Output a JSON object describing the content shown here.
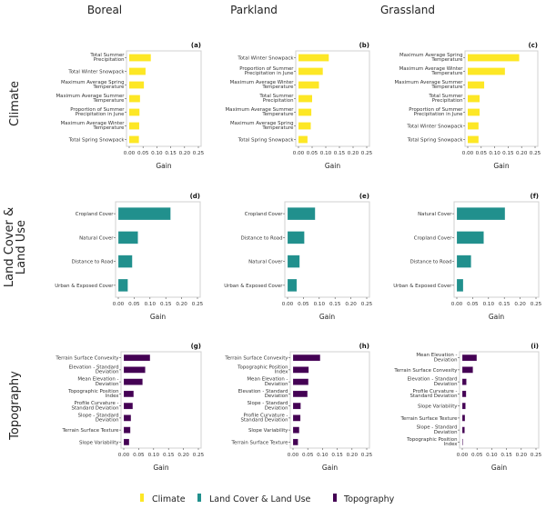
{
  "figure": {
    "column_titles": [
      "Boreal",
      "Parkland",
      "Grassland"
    ],
    "row_titles": [
      [
        "Climate"
      ],
      [
        "Land Cover &",
        "Land Use"
      ],
      [
        "Topography"
      ]
    ],
    "legend": [
      {
        "label": "Climate",
        "color": "#fde725"
      },
      {
        "label": "Land Cover & Land Use",
        "color": "#21908d"
      },
      {
        "label": "Topography",
        "color": "#440154"
      }
    ]
  },
  "chart_data": [
    {
      "type": "bar",
      "orientation": "horizontal",
      "panel": "(a)",
      "region": "Boreal",
      "group": "Climate",
      "color": "#fde725",
      "xlabel": "Gain",
      "xlim": [
        0,
        0.25
      ],
      "xticks": [
        "0.00",
        "0.05",
        "0.10",
        "0.15",
        "0.20",
        "0.25"
      ],
      "categories": [
        [
          "Total Summer",
          "Precipitation"
        ],
        [
          "Total Winter Snowpack"
        ],
        [
          "Maximum Average Spring",
          "Temperature"
        ],
        [
          "Maximum Average Summer",
          "Temperature"
        ],
        [
          "Proportion of Summer",
          "Precipitation in June"
        ],
        [
          "Maximum Average Winter",
          "Temperature"
        ],
        [
          "Total Spring Snowpack"
        ]
      ],
      "values": [
        0.078,
        0.059,
        0.053,
        0.039,
        0.037,
        0.036,
        0.035
      ]
    },
    {
      "type": "bar",
      "orientation": "horizontal",
      "panel": "(b)",
      "region": "Parkland",
      "group": "Climate",
      "color": "#fde725",
      "xlabel": "Gain",
      "xlim": [
        0,
        0.25
      ],
      "xticks": [
        "0.00",
        "0.05",
        "0.10",
        "0.15",
        "0.20",
        "0.25"
      ],
      "categories": [
        [
          "Total Winter Snowpack"
        ],
        [
          "Proportion of Summer",
          "Precipitation in June"
        ],
        [
          "Maximum Average Winter",
          "Temperature"
        ],
        [
          "Total Summer",
          "Precipitation"
        ],
        [
          "Maximum Average Summer",
          "Temperature"
        ],
        [
          "Maximum Average Spring",
          "Temperature"
        ],
        [
          "Total Spring Snowpack"
        ]
      ],
      "values": [
        0.111,
        0.089,
        0.075,
        0.05,
        0.047,
        0.045,
        0.033
      ]
    },
    {
      "type": "bar",
      "orientation": "horizontal",
      "panel": "(c)",
      "region": "Grassland",
      "group": "Climate",
      "color": "#fde725",
      "xlabel": "Gain",
      "xlim": [
        0,
        0.25
      ],
      "xticks": [
        "0.00",
        "0.05",
        "0.10",
        "0.15",
        "0.20",
        "0.25"
      ],
      "categories": [
        [
          "Maximum Average Spring",
          "Temperature"
        ],
        [
          "Maximum Average Winter",
          "Temperature"
        ],
        [
          "Maximum Average Summer",
          "Temperature"
        ],
        [
          "Total Summer",
          "Precipitation"
        ],
        [
          "Proportion of Summer",
          "Precipitation in June"
        ],
        [
          "Total Winter Snowpack"
        ],
        [
          "Total Spring Snowpack"
        ]
      ],
      "values": [
        0.191,
        0.138,
        0.061,
        0.044,
        0.044,
        0.04,
        0.04
      ]
    },
    {
      "type": "bar",
      "orientation": "horizontal",
      "panel": "(d)",
      "region": "Boreal",
      "group": "Land Cover & Land Use",
      "color": "#21908d",
      "xlabel": "Gain",
      "xlim": [
        0,
        0.25
      ],
      "xticks": [
        "0.00",
        "0.05",
        "0.10",
        "0.15",
        "0.20",
        "0.25"
      ],
      "categories": [
        [
          "Cropland Cover"
        ],
        [
          "Natural Cover"
        ],
        [
          "Distance to Road"
        ],
        [
          "Urban & Exposed Cover"
        ]
      ],
      "values": [
        0.165,
        0.062,
        0.044,
        0.03
      ]
    },
    {
      "type": "bar",
      "orientation": "horizontal",
      "panel": "(e)",
      "region": "Parkland",
      "group": "Land Cover & Land Use",
      "color": "#21908d",
      "xlabel": "Gain",
      "xlim": [
        0,
        0.25
      ],
      "xticks": [
        "0.00",
        "0.05",
        "0.10",
        "0.15",
        "0.20",
        "0.25"
      ],
      "categories": [
        [
          "Cropland Cover"
        ],
        [
          "Distance to Road"
        ],
        [
          "Natural Cover"
        ],
        [
          "Urban & Exposed Cover"
        ]
      ],
      "values": [
        0.087,
        0.053,
        0.038,
        0.029
      ]
    },
    {
      "type": "bar",
      "orientation": "horizontal",
      "panel": "(f)",
      "region": "Grassland",
      "group": "Land Cover & Land Use",
      "color": "#21908d",
      "xlabel": "Gain",
      "xlim": [
        0,
        0.25
      ],
      "xticks": [
        "0.00",
        "0.05",
        "0.10",
        "0.15",
        "0.20",
        "0.25"
      ],
      "categories": [
        [
          "Natural Cover"
        ],
        [
          "Cropland Cover"
        ],
        [
          "Distance to Road"
        ],
        [
          "Urban & Exposed Cover"
        ]
      ],
      "values": [
        0.152,
        0.085,
        0.045,
        0.02
      ]
    },
    {
      "type": "bar",
      "orientation": "horizontal",
      "panel": "(g)",
      "region": "Boreal",
      "group": "Topography",
      "color": "#440154",
      "xlabel": "Gain",
      "xlim": [
        0,
        0.25
      ],
      "xticks": [
        "0.00",
        "0.05",
        "0.10",
        "0.15",
        "0.20",
        "0.25"
      ],
      "categories": [
        [
          "Terrain Surface Convexity"
        ],
        [
          "Elevation - Standard",
          "Deviation"
        ],
        [
          "Mean Elevation -",
          "Deviation"
        ],
        [
          "Topographic Position",
          "Index"
        ],
        [
          "Profile Curvature -",
          "Standard Deviation"
        ],
        [
          "Slope - Standard",
          "Deviation"
        ],
        [
          "Terrain Surface Texture"
        ],
        [
          "Slope Variability"
        ]
      ],
      "values": [
        0.088,
        0.072,
        0.063,
        0.033,
        0.03,
        0.024,
        0.022,
        0.018
      ]
    },
    {
      "type": "bar",
      "orientation": "horizontal",
      "panel": "(h)",
      "region": "Parkland",
      "group": "Topography",
      "color": "#440154",
      "xlabel": "Gain",
      "xlim": [
        0,
        0.25
      ],
      "xticks": [
        "0.00",
        "0.05",
        "0.10",
        "0.15",
        "0.20",
        "0.25"
      ],
      "categories": [
        [
          "Terrain Surface Convexity"
        ],
        [
          "Topographic Position",
          "Index"
        ],
        [
          "Mean Elevation -",
          "Deviation"
        ],
        [
          "Elevation - Standard",
          "Deviation"
        ],
        [
          "Slope - Standard",
          "Deviation"
        ],
        [
          "Profile Curvature -",
          "Standard Deviation"
        ],
        [
          "Slope Variability"
        ],
        [
          "Terrain Surface Texture"
        ]
      ],
      "values": [
        0.092,
        0.053,
        0.052,
        0.049,
        0.026,
        0.025,
        0.021,
        0.017
      ]
    },
    {
      "type": "bar",
      "orientation": "horizontal",
      "panel": "(i)",
      "region": "Grassland",
      "group": "Topography",
      "color": "#440154",
      "xlabel": "Gain",
      "xlim": [
        0,
        0.25
      ],
      "xticks": [
        "0.00",
        "0.05",
        "0.10",
        "0.15",
        "0.20",
        "0.25"
      ],
      "categories": [
        [
          "Mean Elevation -",
          "Deviation"
        ],
        [
          "Terrain Surface Convexity"
        ],
        [
          "Elevation - Standard",
          "Deviation"
        ],
        [
          "Profile Curvature -",
          "Standard Deviation"
        ],
        [
          "Slope Variability"
        ],
        [
          "Terrain Surface Texture"
        ],
        [
          "Slope - Standard",
          "Deviation"
        ],
        [
          "Topographic Position",
          "Index"
        ]
      ],
      "values": [
        0.049,
        0.036,
        0.014,
        0.013,
        0.011,
        0.009,
        0.008,
        0.002
      ]
    }
  ]
}
